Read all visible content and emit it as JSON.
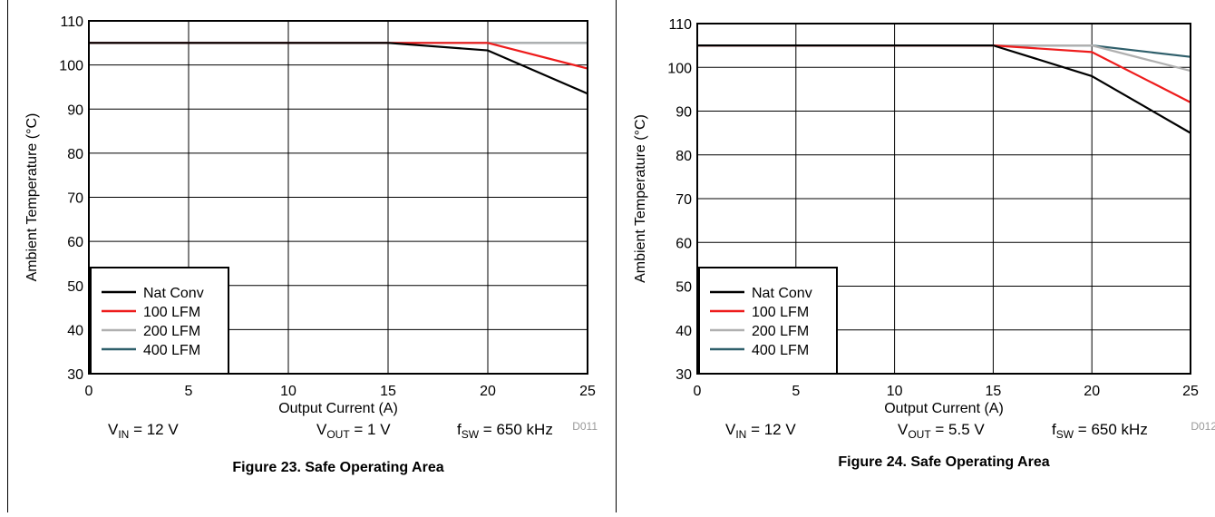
{
  "colors": {
    "nat_conv": "#000000",
    "lfm_100": "#ee1c1c",
    "lfm_200": "#b0b0b0",
    "lfm_400": "#2f5f6b"
  },
  "chart_data": [
    {
      "type": "line",
      "title": "Figure 23. Safe Operating Area",
      "xlabel": "Output Current (A)",
      "ylabel": "Ambient Temperature (°C)",
      "xlim": [
        0,
        25
      ],
      "ylim": [
        30,
        110
      ],
      "xticks": [
        "0",
        "5",
        "10",
        "15",
        "20",
        "25"
      ],
      "yticks": [
        "30",
        "40",
        "50",
        "60",
        "70",
        "80",
        "90",
        "100",
        "110"
      ],
      "grid": true,
      "legend_position": "bottom-left",
      "code": "D011",
      "conditions": {
        "vin": {
          "sym": "V",
          "sub": "IN",
          "rest": " = 12 V"
        },
        "vout": {
          "sym": "V",
          "sub": "OUT",
          "rest": " = 1 V"
        },
        "fsw": {
          "sym": "f",
          "sub": "SW",
          "rest": " = 650 kHz"
        }
      },
      "series": [
        {
          "name": "Nat Conv",
          "color": "#000000",
          "x": [
            0,
            15,
            20,
            25
          ],
          "y": [
            105,
            105,
            103.3,
            93.5
          ]
        },
        {
          "name": "100 LFM",
          "color": "#ee1c1c",
          "x": [
            0,
            20,
            25
          ],
          "y": [
            105,
            105,
            99.2
          ]
        },
        {
          "name": "200 LFM",
          "color": "#b0b0b0",
          "x": [
            0,
            25
          ],
          "y": [
            105,
            105
          ]
        },
        {
          "name": "400 LFM",
          "color": "#2f5f6b",
          "x": [
            0,
            25
          ],
          "y": [
            105,
            105
          ]
        }
      ]
    },
    {
      "type": "line",
      "title": "Figure 24. Safe Operating Area",
      "xlabel": "Output Current (A)",
      "ylabel": "Ambient Temperature (°C)",
      "xlim": [
        0,
        25
      ],
      "ylim": [
        30,
        110
      ],
      "xticks": [
        "0",
        "5",
        "10",
        "15",
        "20",
        "25"
      ],
      "yticks": [
        "30",
        "40",
        "50",
        "60",
        "70",
        "80",
        "90",
        "100",
        "110"
      ],
      "grid": true,
      "legend_position": "bottom-left",
      "code": "D012",
      "conditions": {
        "vin": {
          "sym": "V",
          "sub": "IN",
          "rest": " = 12 V"
        },
        "vout": {
          "sym": "V",
          "sub": "OUT",
          "rest": " = 5.5 V"
        },
        "fsw": {
          "sym": "f",
          "sub": "SW",
          "rest": " = 650 kHz"
        }
      },
      "series": [
        {
          "name": "Nat Conv",
          "color": "#000000",
          "x": [
            0,
            15,
            20,
            25
          ],
          "y": [
            105,
            105,
            98,
            85
          ]
        },
        {
          "name": "100 LFM",
          "color": "#ee1c1c",
          "x": [
            0,
            15,
            20,
            25
          ],
          "y": [
            105,
            105,
            103.5,
            92
          ]
        },
        {
          "name": "200 LFM",
          "color": "#b0b0b0",
          "x": [
            0,
            20,
            25
          ],
          "y": [
            105,
            105,
            99.2
          ]
        },
        {
          "name": "400 LFM",
          "color": "#2f5f6b",
          "x": [
            0,
            20,
            25
          ],
          "y": [
            105,
            105,
            102.4
          ]
        }
      ]
    }
  ]
}
